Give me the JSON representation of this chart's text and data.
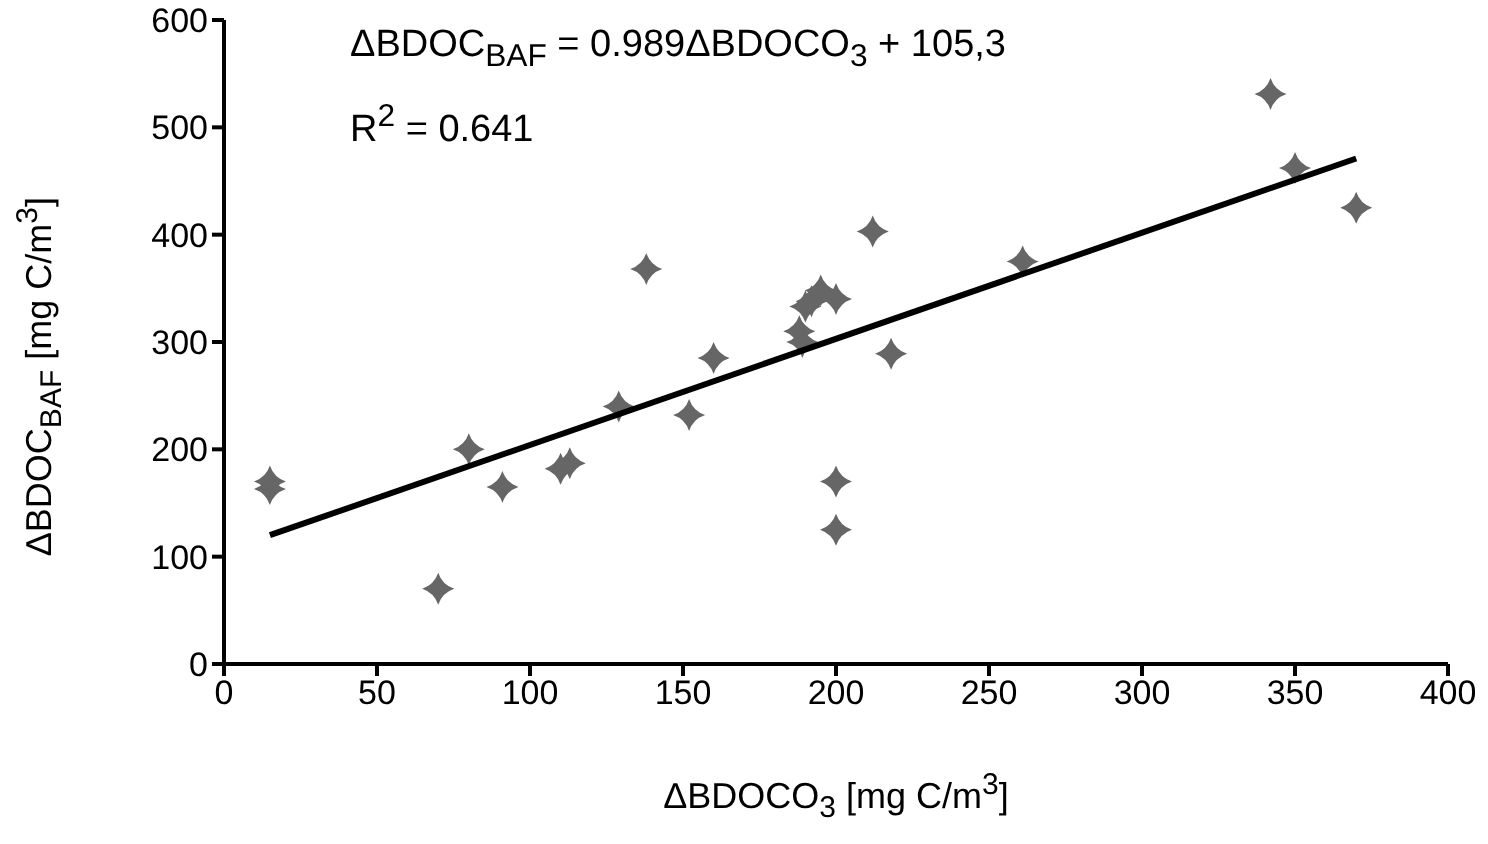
{
  "chart_data": {
    "type": "scatter",
    "xlabel": "ΔBDOCO$_{3}$ [mg C/m$^{3}$]",
    "ylabel": "ΔBDOC$_{BAF}$ [mg C/m$^{3}$]",
    "annotations": [
      "ΔBDOC$_{BAF}$ = 0.989ΔBDOCO$_{3}$ + 105,3",
      "R$^{2}$ = 0.641"
    ],
    "xlim": [
      0,
      400
    ],
    "xticks": [
      0,
      50,
      100,
      150,
      200,
      250,
      300,
      350,
      400
    ],
    "ylim": [
      0,
      600
    ],
    "yticks": [
      0,
      100,
      200,
      300,
      400,
      500,
      600
    ],
    "grid": false,
    "legend": false,
    "series": [
      {
        "type": "scatter",
        "color": "#666666",
        "marker": "diamond",
        "x": [
          15,
          15,
          70,
          80,
          91,
          110,
          113,
          129,
          138,
          152,
          160,
          188,
          189,
          190,
          192,
          195,
          200,
          200,
          200,
          212,
          218,
          261,
          342,
          350,
          370
        ],
        "values": [
          170,
          163,
          70,
          200,
          165,
          182,
          187,
          240,
          368,
          232,
          285,
          310,
          300,
          333,
          338,
          348,
          340,
          170,
          125,
          403,
          289,
          375,
          531,
          462,
          425
        ]
      },
      {
        "type": "line",
        "color": "#000000",
        "marker": "none",
        "line_style": "solid",
        "x": [
          15,
          370
        ],
        "values": [
          120,
          471
        ]
      }
    ]
  }
}
